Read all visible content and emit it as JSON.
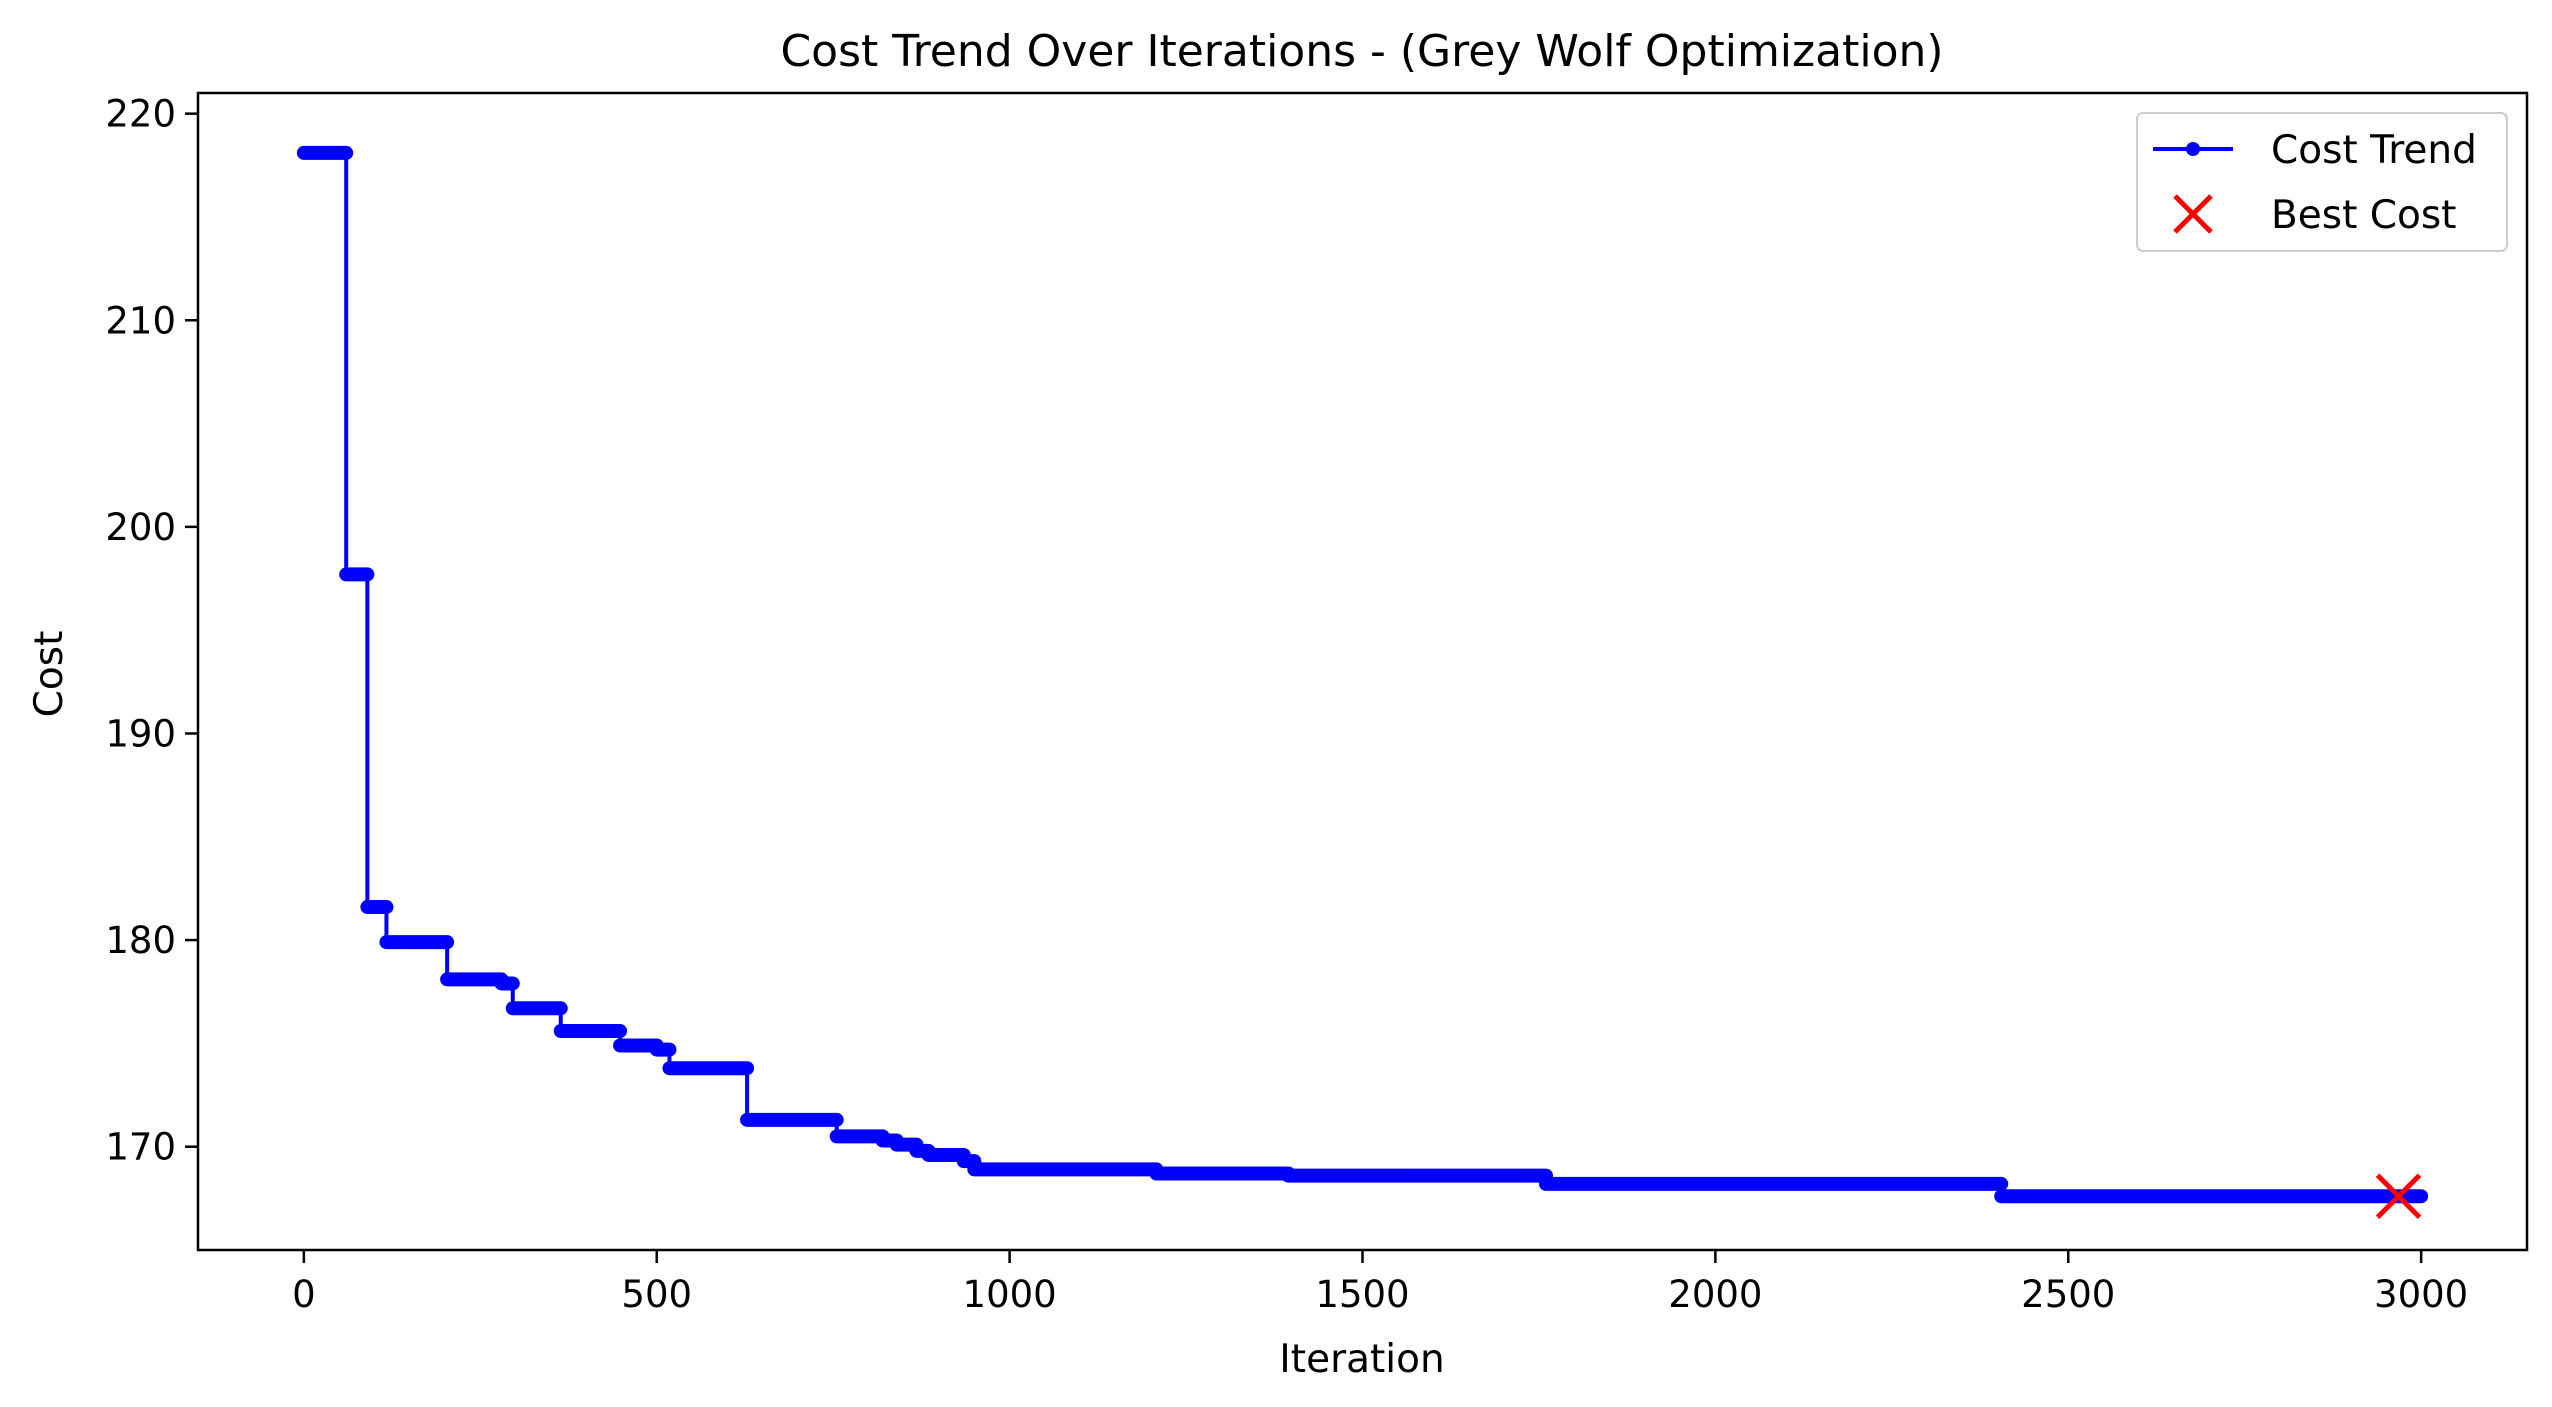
{
  "chart_data": {
    "type": "line",
    "title": "Cost Trend Over Iterations - (Grey Wolf Optimization)",
    "xlabel": "Iteration",
    "ylabel": "Cost",
    "xlim": [
      -150,
      3150
    ],
    "ylim": [
      165,
      221
    ],
    "xticks": [
      0,
      500,
      1000,
      1500,
      2000,
      2500,
      3000
    ],
    "yticks": [
      170,
      180,
      190,
      200,
      210,
      220
    ],
    "grid": false,
    "legend_position": "top-right",
    "series": [
      {
        "name": "Cost Trend",
        "color": "#0000ff",
        "style": "step line with dot markers",
        "steps": [
          {
            "x_start": 0,
            "x_end": 60,
            "y": 218.1
          },
          {
            "x_start": 60,
            "x_end": 90,
            "y": 197.7
          },
          {
            "x_start": 90,
            "x_end": 117,
            "y": 181.6
          },
          {
            "x_start": 117,
            "x_end": 203,
            "y": 179.9
          },
          {
            "x_start": 203,
            "x_end": 280,
            "y": 178.1
          },
          {
            "x_start": 280,
            "x_end": 296,
            "y": 177.9
          },
          {
            "x_start": 296,
            "x_end": 364,
            "y": 176.7
          },
          {
            "x_start": 364,
            "x_end": 448,
            "y": 175.6
          },
          {
            "x_start": 448,
            "x_end": 500,
            "y": 174.9
          },
          {
            "x_start": 500,
            "x_end": 518,
            "y": 174.7
          },
          {
            "x_start": 518,
            "x_end": 628,
            "y": 173.8
          },
          {
            "x_start": 628,
            "x_end": 755,
            "y": 171.3
          },
          {
            "x_start": 755,
            "x_end": 820,
            "y": 170.5
          },
          {
            "x_start": 820,
            "x_end": 840,
            "y": 170.3
          },
          {
            "x_start": 840,
            "x_end": 868,
            "y": 170.1
          },
          {
            "x_start": 868,
            "x_end": 885,
            "y": 169.8
          },
          {
            "x_start": 885,
            "x_end": 935,
            "y": 169.6
          },
          {
            "x_start": 935,
            "x_end": 950,
            "y": 169.3
          },
          {
            "x_start": 950,
            "x_end": 1208,
            "y": 168.9
          },
          {
            "x_start": 1208,
            "x_end": 1395,
            "y": 168.7
          },
          {
            "x_start": 1395,
            "x_end": 1760,
            "y": 168.6
          },
          {
            "x_start": 1760,
            "x_end": 2405,
            "y": 168.2
          },
          {
            "x_start": 2405,
            "x_end": 3000,
            "y": 167.6
          }
        ]
      },
      {
        "name": "Best Cost",
        "color": "#ff0000",
        "marker": "x",
        "points": [
          {
            "x": 2968,
            "y": 167.6
          }
        ]
      }
    ]
  }
}
